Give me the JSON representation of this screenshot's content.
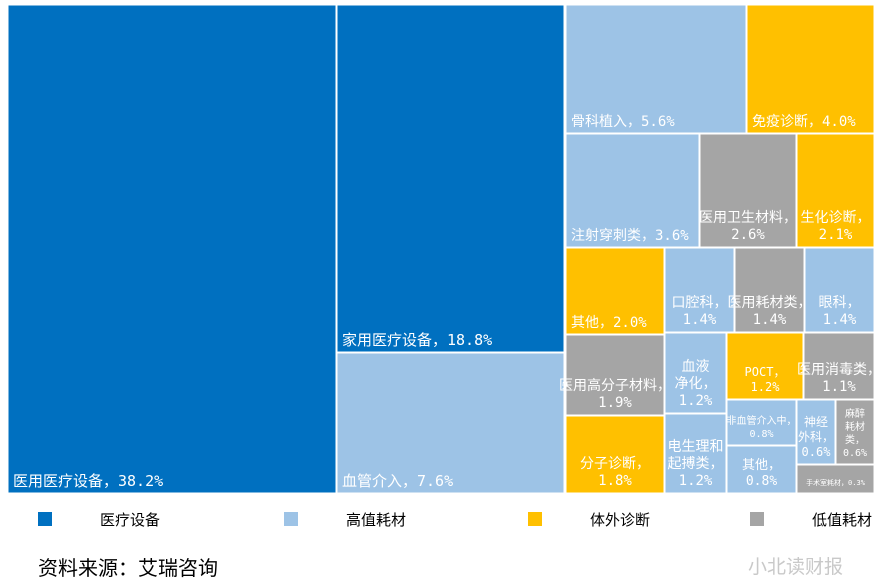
{
  "chart_data": {
    "type": "treemap",
    "colors": {
      "医疗设备": "#0070c0",
      "高值耗材": "#9dc3e6",
      "体外诊断": "#ffc000",
      "低值耗材": "#a5a5a5"
    },
    "cells": [
      {
        "name": "医用医疗设备",
        "value": 38.2,
        "category": "医疗设备",
        "label": "医用医疗设备，38.2%"
      },
      {
        "name": "家用医疗设备",
        "value": 18.8,
        "category": "医疗设备",
        "label": "家用医疗设备，18.8%"
      },
      {
        "name": "血管介入",
        "value": 7.6,
        "category": "高值耗材",
        "label": "血管介入，7.6%"
      },
      {
        "name": "骨科植入",
        "value": 5.6,
        "category": "高值耗材",
        "label": "骨科植入，5.6%"
      },
      {
        "name": "免疫诊断",
        "value": 4.0,
        "category": "体外诊断",
        "label": "免疫诊断，4.0%"
      },
      {
        "name": "注射穿刺类",
        "value": 3.6,
        "category": "高值耗材",
        "label": "注射穿刺类，3.6%"
      },
      {
        "name": "医用卫生材料",
        "value": 2.6,
        "category": "低值耗材",
        "label": "医用卫生材料，2.6%"
      },
      {
        "name": "生化诊断",
        "value": 2.1,
        "category": "体外诊断",
        "label": "生化诊断，2.1%"
      },
      {
        "name": "其他",
        "value": 2.0,
        "category": "体外诊断",
        "label": "其他，2.0%"
      },
      {
        "name": "口腔科",
        "value": 1.4,
        "category": "高值耗材",
        "label": "口腔科，1.4%"
      },
      {
        "name": "医用耗材类",
        "value": 1.4,
        "category": "低值耗材",
        "label": "医用耗材类，1.4%"
      },
      {
        "name": "眼科",
        "value": 1.4,
        "category": "高值耗材",
        "label": "眼科，1.4%"
      },
      {
        "name": "医用高分子材料",
        "value": 1.9,
        "category": "低值耗材",
        "label": "医用高分子材料，1.9%"
      },
      {
        "name": "血液净化",
        "value": 1.2,
        "category": "高值耗材",
        "label": "血液净化，1.2%"
      },
      {
        "name": "POCT",
        "value": 1.2,
        "category": "体外诊断",
        "label": "POCT，1.2%"
      },
      {
        "name": "医用消毒类",
        "value": 1.1,
        "category": "低值耗材",
        "label": "医用消毒类，1.1%"
      },
      {
        "name": "非血管介入中",
        "value": 0.8,
        "category": "高值耗材",
        "label": "非血管介入中，0.8%"
      },
      {
        "name": "神经外科",
        "value": 0.6,
        "category": "高值耗材",
        "label": "神经外科，0.6%"
      },
      {
        "name": "麻醉耗材类",
        "value": 0.6,
        "category": "低值耗材",
        "label": "麻醉耗材类，0.6%"
      },
      {
        "name": "分子诊断",
        "value": 1.8,
        "category": "体外诊断",
        "label": "分子诊断，1.8%"
      },
      {
        "name": "电生理和起搏类",
        "value": 1.2,
        "category": "高值耗材",
        "label": "电生理和起搏类，1.2%"
      },
      {
        "name": "其他",
        "value": 0.8,
        "category": "高值耗材",
        "label": "其他，0.8%"
      },
      {
        "name": "手术室耗材",
        "value": 0.3,
        "category": "低值耗材",
        "label": "手术室耗材，0.3%"
      }
    ],
    "legend": [
      "医疗设备",
      "高值耗材",
      "体外诊断",
      "低值耗材"
    ],
    "legend_position": "bottom"
  },
  "source": "资料来源：艾瑞咨询",
  "watermark": "小北读财报"
}
